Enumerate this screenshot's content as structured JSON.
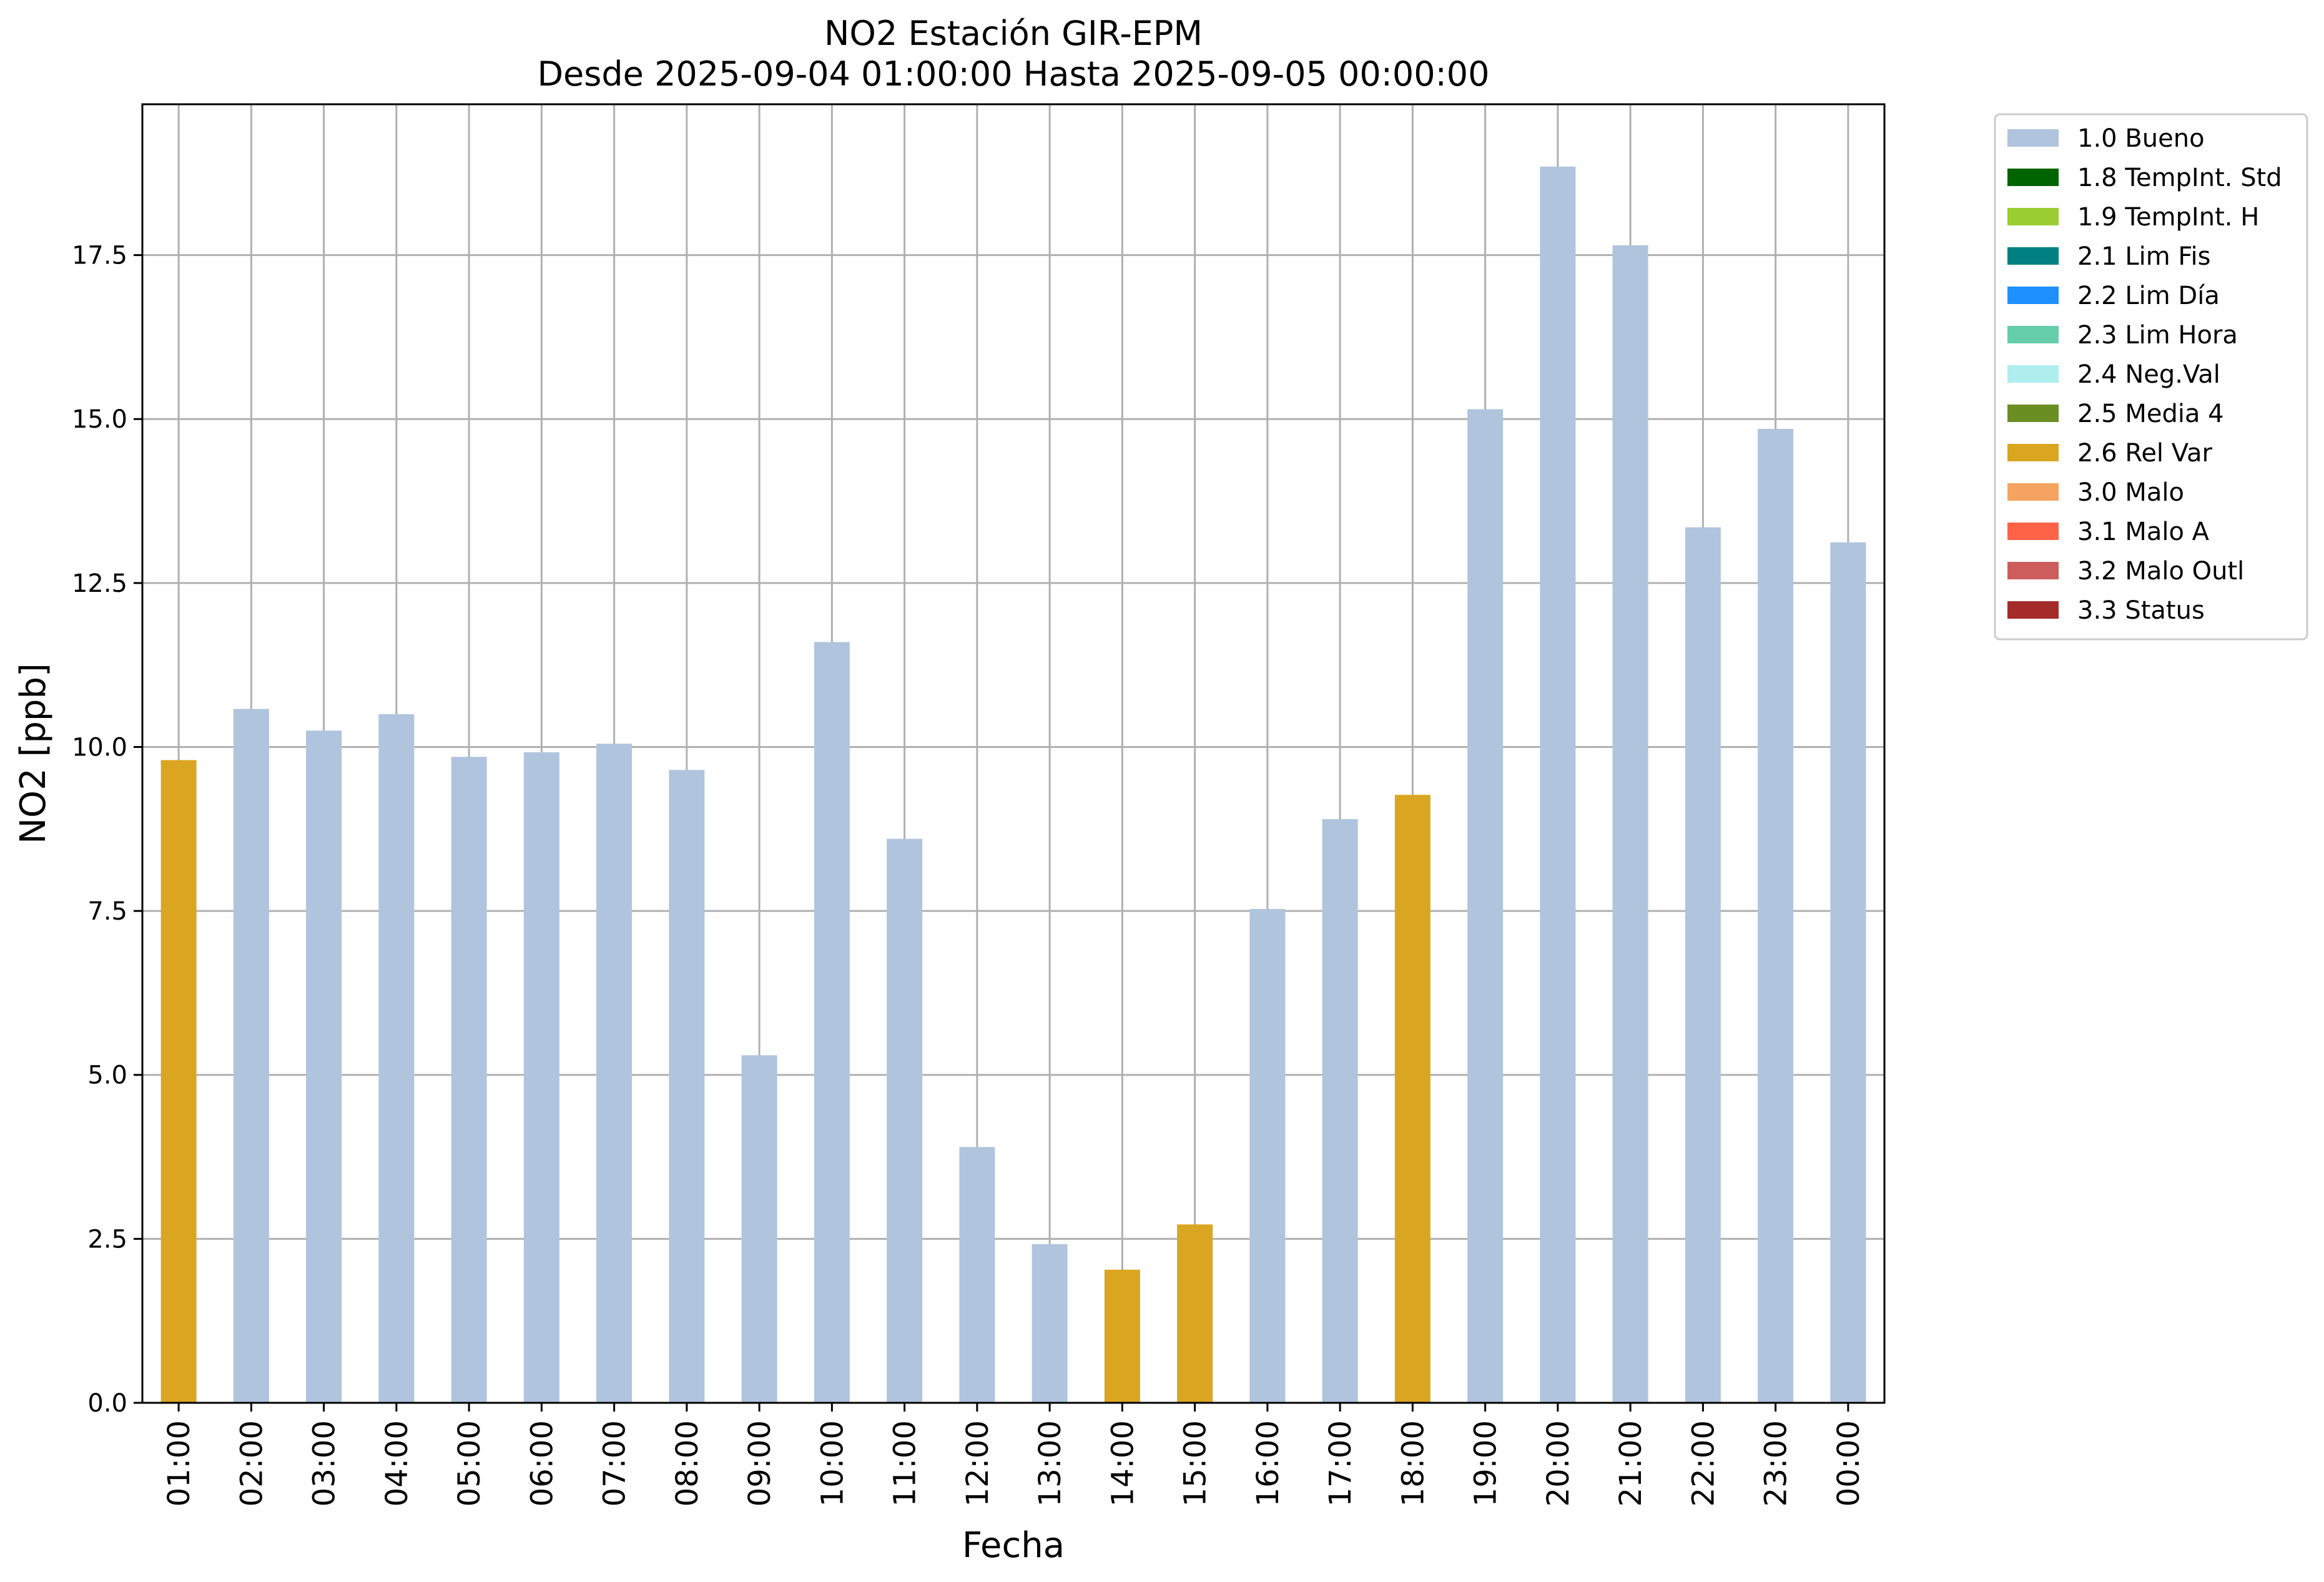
{
  "chart_data": {
    "type": "bar",
    "title": "NO2 Estación GIR-EPM",
    "subtitle": "Desde 2025-09-04 01:00:00 Hasta 2025-09-05 00:00:00",
    "xlabel": "Fecha",
    "ylabel": "NO2 [ppb]",
    "ylim": [
      0,
      19.8
    ],
    "yticks": [
      "0.0",
      "2.5",
      "5.0",
      "7.5",
      "10.0",
      "12.5",
      "15.0",
      "17.5"
    ],
    "grid": true,
    "legend_position": "outside right, top",
    "categories": [
      "01:00",
      "02:00",
      "03:00",
      "04:00",
      "05:00",
      "06:00",
      "07:00",
      "08:00",
      "09:00",
      "10:00",
      "11:00",
      "12:00",
      "13:00",
      "14:00",
      "15:00",
      "16:00",
      "17:00",
      "18:00",
      "19:00",
      "20:00",
      "21:00",
      "22:00",
      "23:00",
      "00:00"
    ],
    "values": [
      9.8,
      10.58,
      10.25,
      10.5,
      9.85,
      9.92,
      10.05,
      9.65,
      5.3,
      11.6,
      8.6,
      3.9,
      2.42,
      2.03,
      2.72,
      7.53,
      8.9,
      9.27,
      15.15,
      18.85,
      17.65,
      13.35,
      14.85,
      13.12
    ],
    "flags": [
      "2.6 Rel Var",
      "1.0 Bueno",
      "1.0 Bueno",
      "1.0 Bueno",
      "1.0 Bueno",
      "1.0 Bueno",
      "1.0 Bueno",
      "1.0 Bueno",
      "1.0 Bueno",
      "1.0 Bueno",
      "1.0 Bueno",
      "1.0 Bueno",
      "1.0 Bueno",
      "2.6 Rel Var",
      "2.6 Rel Var",
      "1.0 Bueno",
      "1.0 Bueno",
      "2.6 Rel Var",
      "1.0 Bueno",
      "1.0 Bueno",
      "1.0 Bueno",
      "1.0 Bueno",
      "1.0 Bueno",
      "1.0 Bueno"
    ],
    "legend": [
      {
        "label": "1.0 Bueno",
        "color": "#b0c4de"
      },
      {
        "label": "1.8 TempInt. Std",
        "color": "#006400"
      },
      {
        "label": "1.9 TempInt. H",
        "color": "#9acd32"
      },
      {
        "label": "2.1 Lim Fis",
        "color": "#008080"
      },
      {
        "label": "2.2 Lim Día",
        "color": "#1e90ff"
      },
      {
        "label": "2.3 Lim Hora",
        "color": "#66cdaa"
      },
      {
        "label": "2.4 Neg.Val",
        "color": "#afeeee"
      },
      {
        "label": "2.5 Media 4",
        "color": "#6b8e23"
      },
      {
        "label": "2.6 Rel Var",
        "color": "#daa520"
      },
      {
        "label": "3.0 Malo",
        "color": "#f4a460"
      },
      {
        "label": "3.1 Malo A",
        "color": "#ff6347"
      },
      {
        "label": "3.2 Malo Outl",
        "color": "#cd5c5c"
      },
      {
        "label": "3.3 Status",
        "color": "#a52a2a"
      }
    ]
  }
}
